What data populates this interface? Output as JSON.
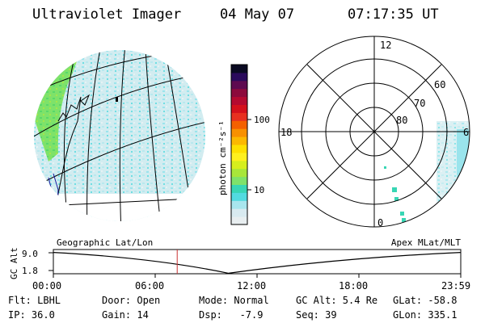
{
  "header": {
    "instrument": "Ultraviolet Imager",
    "date": "04 May 07",
    "time": "07:17:35 UT"
  },
  "colorbar": {
    "unit_label": "photon cm⁻²s⁻¹",
    "tick_labels": [
      "100",
      "10"
    ],
    "colors": [
      "#e8eef0",
      "#d8eaf0",
      "#a8e6ee",
      "#52dbe0",
      "#38d6b4",
      "#7ee26a",
      "#a8e63a",
      "#d6ee1e",
      "#fef01e",
      "#fee000",
      "#fcb800",
      "#f89000",
      "#f46000",
      "#e83020",
      "#d4101c",
      "#b40a30",
      "#8c0a3c",
      "#5e0a50",
      "#2a0a5c",
      "#0a0a22"
    ]
  },
  "polar_plot": {
    "mlt_labels": {
      "top": "12",
      "left": "18",
      "right": "6",
      "bottom": "0"
    },
    "lat_labels": [
      "60",
      "70",
      "80"
    ]
  },
  "altitude_plot": {
    "left_label": "Geographic Lat/Lon",
    "right_label": "Apex MLat/MLT",
    "y_axis_label": "GC Alt",
    "y_ticks": [
      "9.0",
      "1.8"
    ],
    "x_ticks": [
      "00:00",
      "06:00",
      "12:00",
      "18:00",
      "23:59"
    ],
    "current_time_fraction": 0.304,
    "curve_color": "#000000",
    "marker_color": "#c83232"
  },
  "status": {
    "flt": "Flt: LBHL",
    "ip": "IP: 36.0",
    "door": "Door: Open",
    "gain": "Gain: 14",
    "mode": "Mode: Normal",
    "dsp": "Dsp:   -7.9",
    "gcalt": "GC Alt: 5.4 Re",
    "seq": "Seq: 39",
    "glat": "GLat: -58.8",
    "glon": "GLon: 335.1"
  }
}
